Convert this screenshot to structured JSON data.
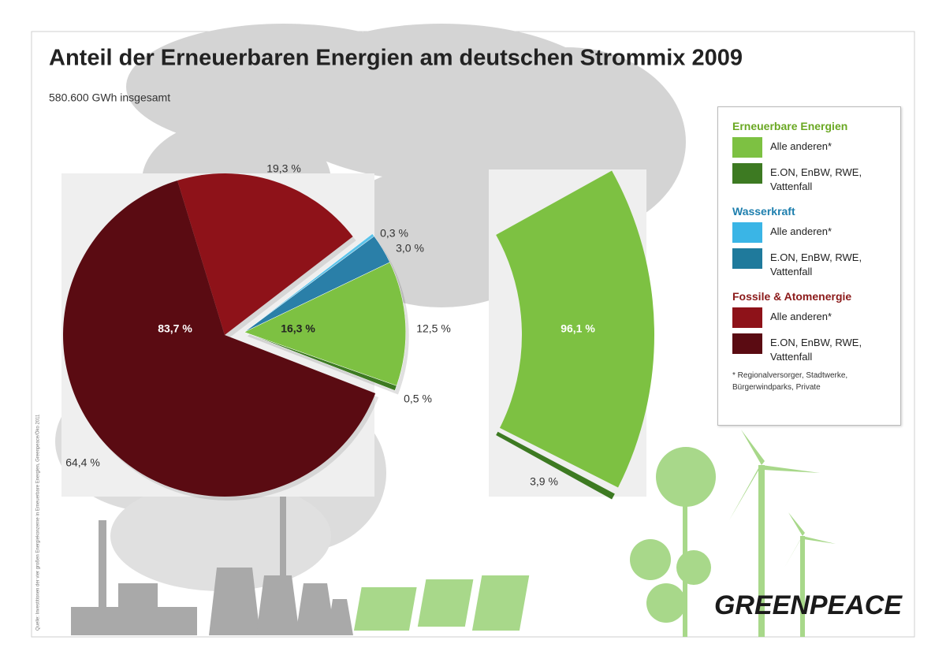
{
  "title": "Anteil der Erneuerbaren Energien am deutschen Strommix 2009",
  "subtitle": "580.600 GWh insgesamt",
  "source": "Quelle: Investitionen der vier großen Energiekonzerne in Erneuerbare Energien, Greenpeace/Öko 2011",
  "logo": "GREENPEACE",
  "chart_data": [
    {
      "type": "pie",
      "values": [
        64.4,
        19.3,
        0.3,
        3.0,
        12.5,
        0.5
      ],
      "value_labels": [
        "64,4 %",
        "19,3 %",
        "0,3 %",
        "3,0 %",
        "12,5 %",
        "0,5 %"
      ],
      "colors": [
        "#5a0b12",
        "#8e1219",
        "#5cc3ea",
        "#2a7fa8",
        "#7dc142",
        "#3d7a22"
      ],
      "groups": [
        {
          "value": 83.7,
          "label": "83,7 %"
        },
        {
          "value": 16.3,
          "label": "16,3 %"
        }
      ]
    },
    {
      "type": "bar",
      "values": [
        96.1,
        3.9
      ],
      "value_labels": [
        "96,1 %",
        "3,9 %"
      ],
      "colors": [
        "#7dc142",
        "#3d7a22"
      ]
    }
  ],
  "legend": {
    "groups": [
      {
        "title": "Erneuerbare Energien",
        "color": "#6aa823",
        "items": [
          {
            "name": "Alle anderen*",
            "color": "#7dc142"
          },
          {
            "name": "E.ON, EnBW, RWE, Vattenfall",
            "color": "#3d7a22"
          }
        ]
      },
      {
        "title": "Wasserkraft",
        "color": "#1e7fae",
        "items": [
          {
            "name": "Alle anderen*",
            "color": "#3ab5e6"
          },
          {
            "name": "E.ON, EnBW, RWE, Vattenfall",
            "color": "#1f7a9c"
          }
        ]
      },
      {
        "title": "Fossile & Atomenergie",
        "color": "#8b1a1a",
        "items": [
          {
            "name": "Alle anderen*",
            "color": "#8e1219"
          },
          {
            "name": "E.ON, EnBW, RWE, Vattenfall",
            "color": "#5a0b12"
          }
        ]
      }
    ],
    "footnote": "* Regionalversorger, Stadtwerke, Bürgerwindparks, Private"
  }
}
